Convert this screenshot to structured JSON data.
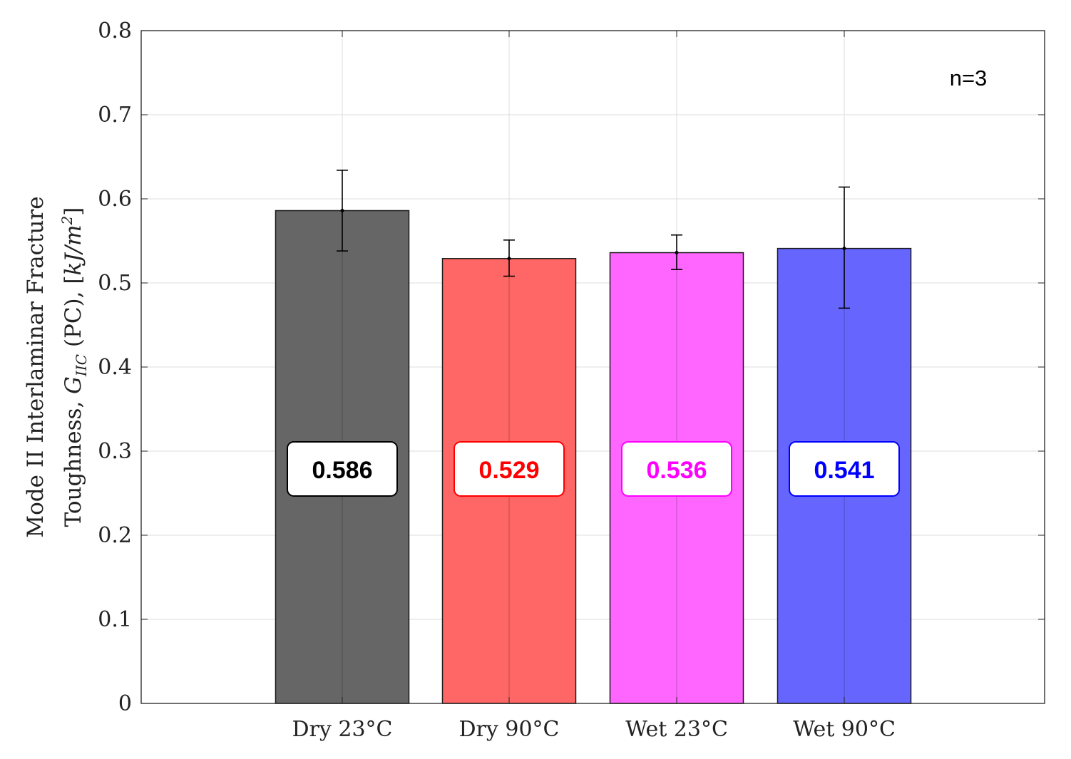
{
  "chart_data": {
    "type": "bar",
    "title": "",
    "xlabel": "",
    "ylabel_line1": "Mode II Interlaminar Fracture",
    "ylabel_line2_prefix": "Toughness, ",
    "ylabel_symbol": "G",
    "ylabel_subscript": "IIC",
    "ylabel_mid": " (PC), [",
    "ylabel_unit": "kJ/m",
    "ylabel_power": "2",
    "ylabel_close": "]",
    "categories": [
      "Dry 23°C",
      "Dry 90°C",
      "Wet 23°C",
      "Wet 90°C"
    ],
    "values": [
      0.586,
      0.529,
      0.536,
      0.541
    ],
    "value_labels": [
      "0.586",
      "0.529",
      "0.536",
      "0.541"
    ],
    "error_low": [
      0.538,
      0.508,
      0.516,
      0.47
    ],
    "error_high": [
      0.634,
      0.551,
      0.557,
      0.614
    ],
    "bar_colors": [
      "#666666",
      "#ff6666",
      "#ff66ff",
      "#6666ff"
    ],
    "label_colors": [
      "#000000",
      "#ff0000",
      "#ff00ff",
      "#0000ff"
    ],
    "ylim": [
      0,
      0.8
    ],
    "yticks": [
      "0",
      "0.1",
      "0.2",
      "0.3",
      "0.4",
      "0.5",
      "0.6",
      "0.7",
      "0.8"
    ],
    "label_y_value": 0.278,
    "grid": true,
    "annotation": "n=3",
    "annotation_position": "top-right"
  }
}
